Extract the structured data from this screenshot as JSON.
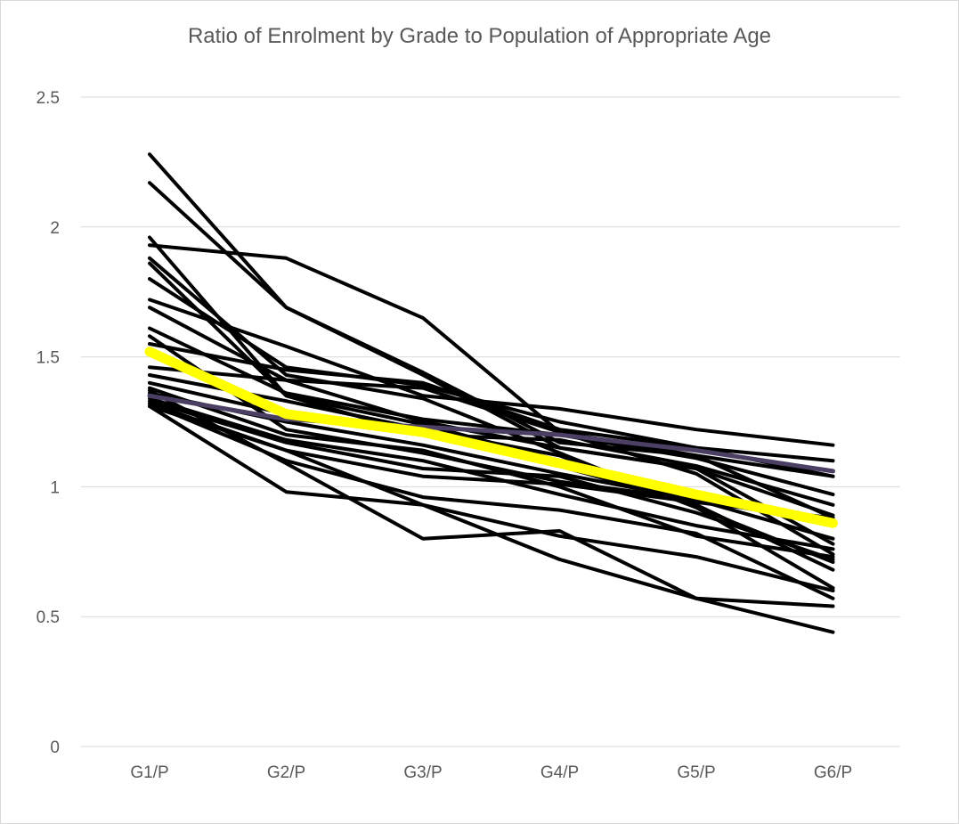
{
  "chart_data": {
    "type": "line",
    "title": "Ratio of Enrolment by Grade to Population of Appropriate Age",
    "xlabel": "",
    "ylabel": "",
    "categories": [
      "G1/P",
      "G2/P",
      "G3/P",
      "G4/P",
      "G5/P",
      "G6/P"
    ],
    "y_ticks": [
      "0",
      "0.5",
      "1",
      "1.5",
      "2",
      "2.5"
    ],
    "ylim": [
      0,
      2.5
    ],
    "grid": true,
    "legend": "none",
    "colors": {
      "default": "#000000",
      "highlight": "#ffff00",
      "purple": "#4b3f63",
      "grid": "#d9d9d9",
      "text": "#595959"
    },
    "series": [
      {
        "values": [
          2.28,
          1.69,
          1.44,
          1.17,
          1.12,
          0.88
        ]
      },
      {
        "values": [
          2.17,
          1.69,
          1.43,
          1.15,
          1.07,
          0.78
        ]
      },
      {
        "values": [
          1.96,
          1.35,
          1.24,
          1.1,
          0.96,
          0.85
        ]
      },
      {
        "values": [
          1.93,
          1.88,
          1.65,
          1.21,
          1.05,
          0.74
        ]
      },
      {
        "values": [
          1.88,
          1.43,
          1.34,
          1.13,
          0.92,
          0.71
        ]
      },
      {
        "values": [
          1.86,
          1.35,
          1.2,
          1.08,
          0.93,
          0.68
        ]
      },
      {
        "values": [
          1.8,
          1.46,
          1.39,
          1.25,
          1.15,
          1.04
        ]
      },
      {
        "values": [
          1.72,
          1.54,
          1.35,
          1.3,
          1.22,
          1.16
        ]
      },
      {
        "values": [
          1.69,
          1.41,
          1.25,
          1.15,
          1.07,
          0.89
        ]
      },
      {
        "values": [
          1.61,
          1.36,
          1.26,
          1.2,
          1.11,
          0.97
        ]
      },
      {
        "values": [
          1.58,
          1.22,
          1.13,
          1.02,
          0.95,
          0.8
        ]
      },
      {
        "values": [
          1.55,
          1.45,
          1.4,
          1.22,
          1.15,
          1.1
        ]
      },
      {
        "values": [
          1.46,
          1.41,
          1.38,
          1.21,
          1.12,
          1.04
        ]
      },
      {
        "values": [
          1.43,
          1.33,
          1.22,
          1.12,
          0.92,
          0.61
        ]
      },
      {
        "values": [
          1.4,
          1.28,
          1.2,
          1.18,
          1.08,
          0.93
        ]
      },
      {
        "values": [
          1.38,
          1.2,
          1.14,
          1.0,
          0.81,
          0.73
        ]
      },
      {
        "values": [
          1.36,
          1.25,
          1.16,
          1.05,
          0.95,
          0.86
        ]
      },
      {
        "values": [
          1.34,
          1.18,
          1.1,
          0.97,
          0.85,
          0.76
        ]
      },
      {
        "values": [
          1.33,
          1.17,
          1.07,
          1.04,
          0.9,
          0.72
        ]
      },
      {
        "values": [
          1.32,
          1.14,
          1.04,
          1.01,
          0.94,
          0.88
        ]
      },
      {
        "values": [
          1.32,
          1.1,
          0.96,
          0.91,
          0.82,
          0.57
        ]
      },
      {
        "values": [
          1.31,
          1.14,
          0.93,
          0.72,
          0.57,
          0.54
        ]
      },
      {
        "values": [
          1.37,
          1.09,
          0.8,
          0.83,
          0.57,
          0.44
        ]
      },
      {
        "values": [
          1.31,
          0.98,
          0.93,
          0.81,
          0.73,
          0.6
        ]
      },
      {
        "values": [
          1.35,
          1.26,
          1.23,
          1.2,
          1.14,
          1.06
        ],
        "color": "purple"
      },
      {
        "values": [
          1.52,
          1.28,
          1.21,
          1.09,
          0.97,
          0.86
        ],
        "color": "highlight"
      }
    ]
  }
}
